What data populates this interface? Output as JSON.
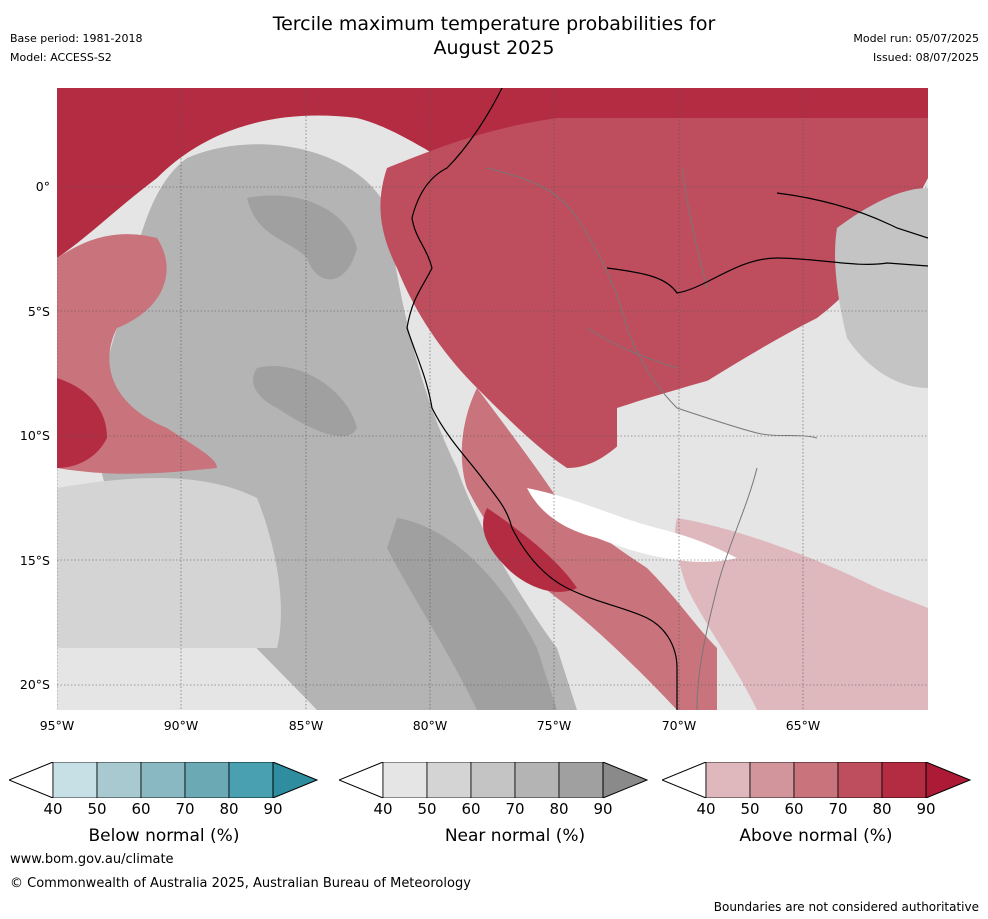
{
  "header": {
    "title_line1": "Tercile maximum temperature probabilities for",
    "title_line2": "August 2025",
    "base_period": "Base period: 1981-2018",
    "model": "Model: ACCESS-S2",
    "model_run": "Model run: 05/07/2025",
    "issued": "Issued: 08/07/2025"
  },
  "map": {
    "lat_labels": [
      "0°",
      "5°S",
      "10°S",
      "15°S",
      "20°S"
    ],
    "lon_labels": [
      "95°W",
      "90°W",
      "85°W",
      "80°W",
      "75°W",
      "70°W",
      "65°W"
    ],
    "colors": {
      "above": [
        "#dfb8bd",
        "#d3959c",
        "#c9737c",
        "#be4e5d",
        "#b32c42",
        "#ad1a35"
      ],
      "near": [
        "#e5e5e5",
        "#d4d4d4",
        "#c4c4c4",
        "#b4b4b4",
        "#a0a0a0",
        "#8a8a8a"
      ],
      "below": [
        "#c7e0e5",
        "#a7c9cf",
        "#89b7c2",
        "#6ba9b5",
        "#48a0b0",
        "#2e8d9f"
      ]
    }
  },
  "legends": [
    {
      "title": "Below normal (%)",
      "ticks": [
        "40",
        "50",
        "60",
        "70",
        "80",
        "90"
      ],
      "colors": [
        "#c7e0e5",
        "#a7c9cf",
        "#89b7c2",
        "#6ba9b5",
        "#48a0b0",
        "#2e8d9f"
      ]
    },
    {
      "title": "Near normal (%)",
      "ticks": [
        "40",
        "50",
        "60",
        "70",
        "80",
        "90"
      ],
      "colors": [
        "#e5e5e5",
        "#d4d4d4",
        "#c4c4c4",
        "#b4b4b4",
        "#a0a0a0",
        "#8a8a8a"
      ]
    },
    {
      "title": "Above normal (%)",
      "ticks": [
        "40",
        "50",
        "60",
        "70",
        "80",
        "90"
      ],
      "colors": [
        "#dfb8bd",
        "#d3959c",
        "#c9737c",
        "#be4e5d",
        "#b32c42",
        "#ad1a35"
      ]
    }
  ],
  "footer": {
    "url": "www.bom.gov.au/climate",
    "copyright": "© Commonwealth of Australia 2025, Australian Bureau of Meteorology",
    "disclaimer": "Boundaries are not considered authoritative"
  }
}
